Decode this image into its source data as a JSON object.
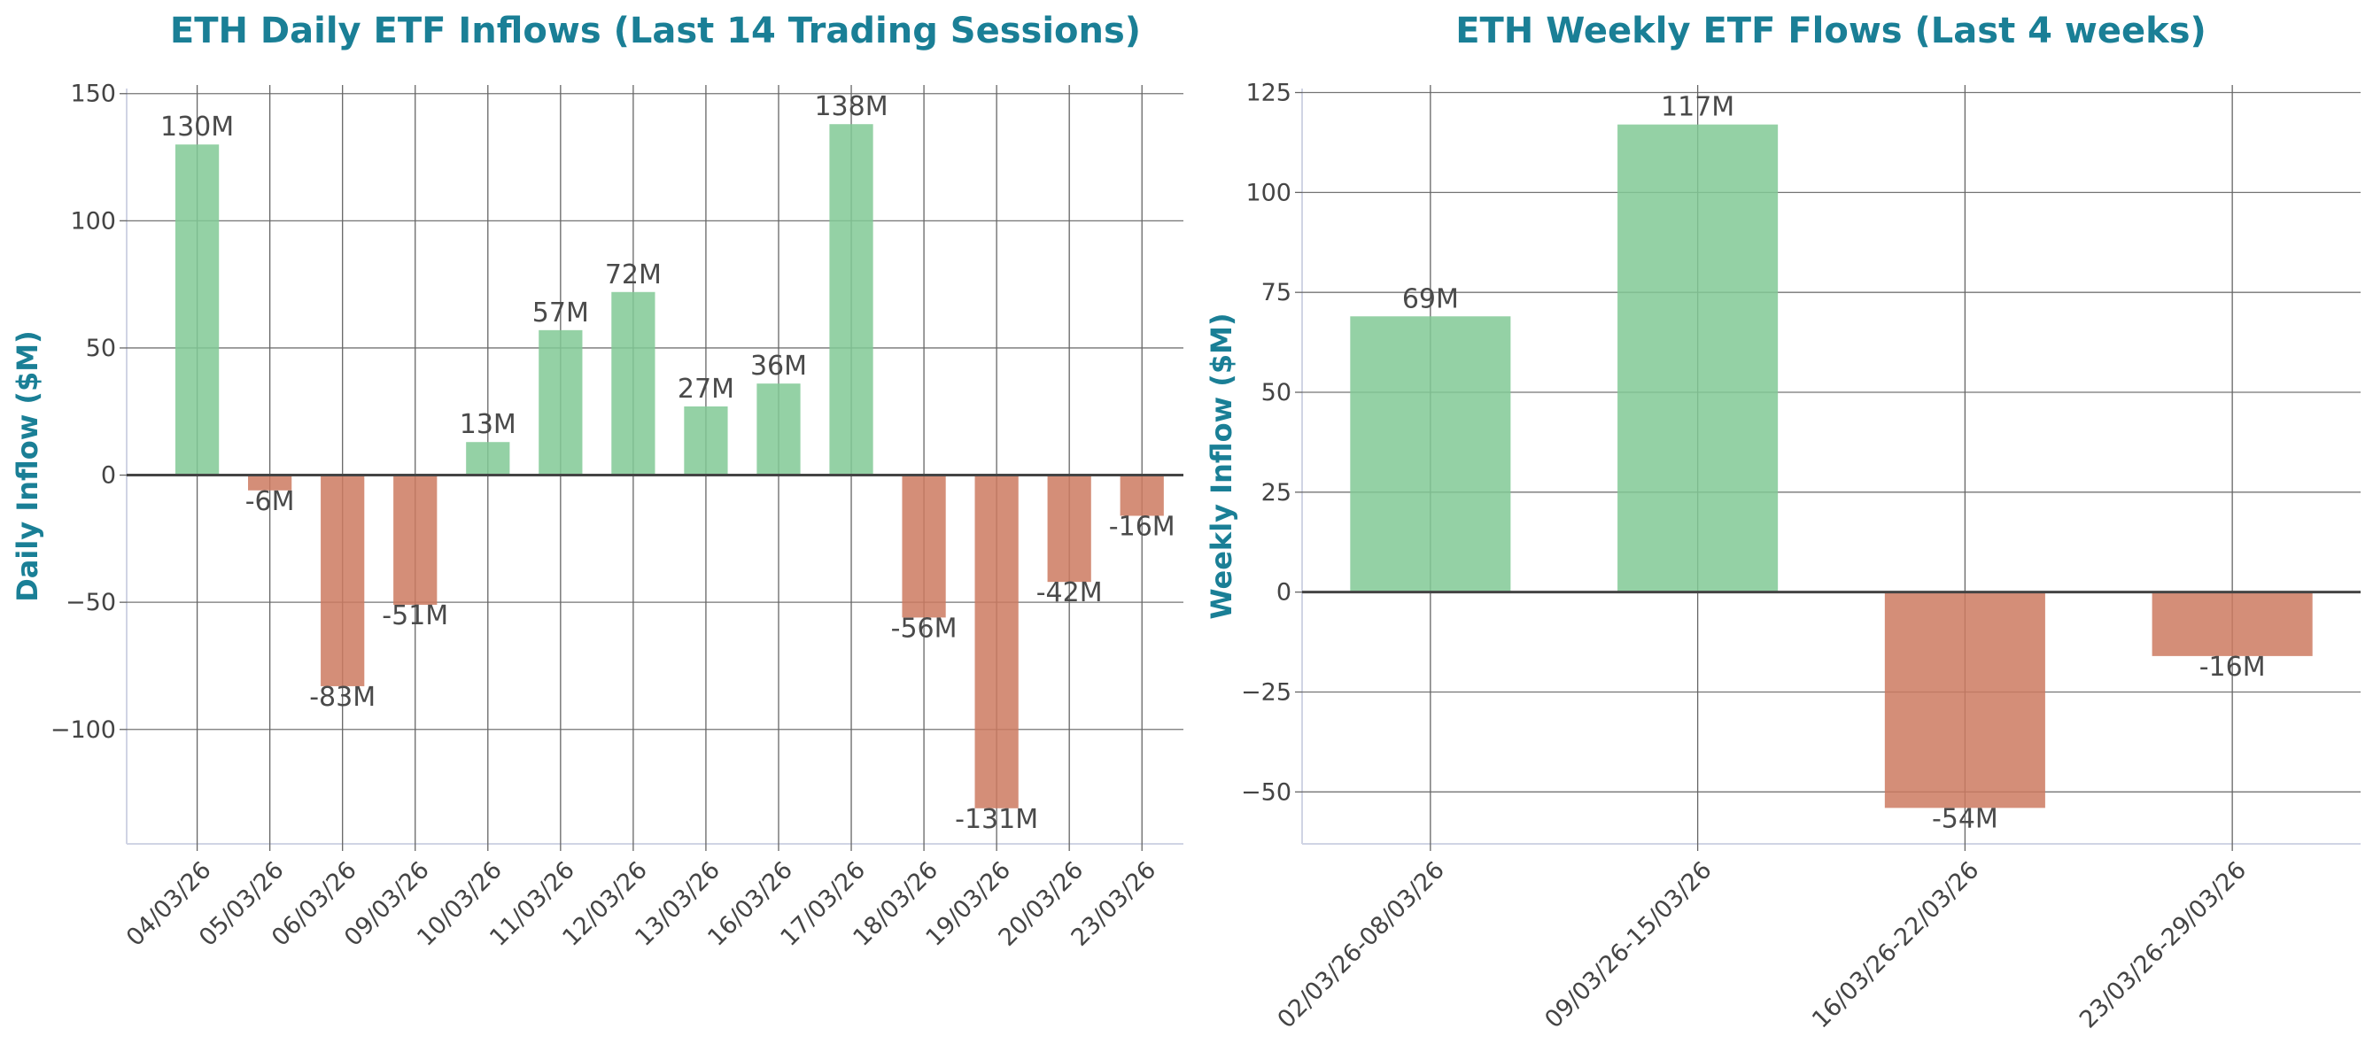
{
  "colors": {
    "title": "#1a7f96",
    "positive": "#81c995",
    "negative": "#cc7a60",
    "grid": "#666666",
    "spine": "#d0d4e4",
    "zero_line": "#444444"
  },
  "chart_data": [
    {
      "type": "bar",
      "title": "ETH Daily ETF Inflows (Last 14 Trading Sessions)",
      "xlabel": "",
      "ylabel": "Daily Inflow ($M)",
      "categories": [
        "04/03/26",
        "05/03/26",
        "06/03/26",
        "09/03/26",
        "10/03/26",
        "11/03/26",
        "12/03/26",
        "13/03/26",
        "16/03/26",
        "17/03/26",
        "18/03/26",
        "19/03/26",
        "20/03/26",
        "23/03/26"
      ],
      "values": [
        130,
        -6,
        -83,
        -51,
        13,
        57,
        72,
        27,
        36,
        138,
        -56,
        -131,
        -42,
        -16
      ],
      "labels": [
        "130M",
        "-6M",
        "-83M",
        "-51M",
        "13M",
        "57M",
        "72M",
        "27M",
        "36M",
        "138M",
        "-56M",
        "-131M",
        "-42M",
        "-16M"
      ],
      "ylim": [
        -145,
        152
      ],
      "yticks": [
        -100,
        -50,
        0,
        50,
        100,
        150
      ],
      "ytick_labels": [
        "−100",
        "−50",
        "0",
        "50",
        "100",
        "150"
      ],
      "grid": true
    },
    {
      "type": "bar",
      "title": "ETH Weekly ETF Flows (Last 4 weeks)",
      "xlabel": "",
      "ylabel": "Weekly Inflow ($M)",
      "categories": [
        "02/03/26-08/03/26",
        "09/03/26-15/03/26",
        "16/03/26-22/03/26",
        "23/03/26-29/03/26"
      ],
      "values": [
        69,
        117,
        -54,
        -16
      ],
      "labels": [
        "69M",
        "117M",
        "-54M",
        "-16M"
      ],
      "ylim": [
        -63,
        126
      ],
      "yticks": [
        -50,
        -25,
        0,
        25,
        50,
        75,
        100,
        125
      ],
      "ytick_labels": [
        "−50",
        "−25",
        "0",
        "25",
        "50",
        "75",
        "100",
        "125"
      ],
      "grid": true
    }
  ]
}
